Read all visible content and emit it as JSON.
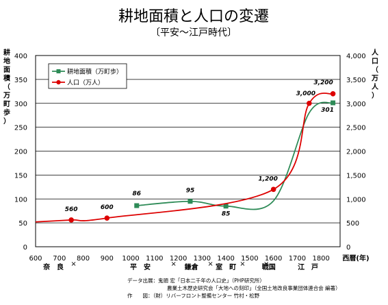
{
  "chart_data": {
    "type": "line",
    "title": "耕地面積と人口の変遷",
    "subtitle": "〔平安〜江戸時代〕",
    "x": [
      600,
      750,
      900,
      1025,
      1250,
      1400,
      1600,
      1750,
      1850
    ],
    "xticks": [
      "600",
      "700",
      "800",
      "900",
      "1000",
      "1100",
      "1200",
      "1300",
      "1400",
      "1500",
      "1600",
      "1700",
      "1800"
    ],
    "xlim": [
      600,
      1880
    ],
    "xlabel": "西暦(年)",
    "eras": [
      "奈　良",
      "平　安",
      "鎌倉",
      "室　町",
      "戦国",
      "江　戸"
    ],
    "y_left": {
      "label": "耕地面積（万町歩）",
      "lim": [
        0,
        400
      ],
      "ticks": [
        "0",
        "50",
        "100",
        "150",
        "200",
        "250",
        "300",
        "350",
        "400"
      ]
    },
    "y_right": {
      "label": "人口（万人）",
      "lim": [
        0,
        4000
      ],
      "ticks": [
        "0",
        "500",
        "1,000",
        "1,500",
        "2,000",
        "2,500",
        "3,000",
        "3,500",
        "4,000"
      ]
    },
    "series": [
      {
        "name": "耕地面積（万町歩）",
        "axis": "left",
        "color": "#2e8b57",
        "points": [
          [
            1025,
            86
          ],
          [
            1250,
            95
          ],
          [
            1400,
            85
          ],
          [
            1600,
            96
          ],
          [
            1750,
            280
          ],
          [
            1850,
            301
          ]
        ],
        "labels": [
          [
            "86",
            1025,
            86
          ],
          [
            "95",
            1250,
            95
          ],
          [
            "85",
            1400,
            85
          ],
          [
            "301",
            1850,
            301
          ]
        ]
      },
      {
        "name": "人口（万人）",
        "axis": "right",
        "color": "#dd0000",
        "points": [
          [
            600,
            520
          ],
          [
            750,
            560
          ],
          [
            900,
            600
          ],
          [
            1600,
            1200
          ],
          [
            1750,
            3000
          ],
          [
            1850,
            3200
          ]
        ],
        "labels": [
          [
            "560",
            750,
            560
          ],
          [
            "600",
            900,
            600
          ],
          [
            "1,200",
            1600,
            1200
          ],
          [
            "3,000",
            1750,
            3000
          ],
          [
            "3,200",
            1850,
            3200
          ]
        ]
      }
    ],
    "legend_position": "top-left",
    "grid": "horizontal"
  },
  "source": {
    "line1": "データ出展：鬼頭 宏「日本二千年の人口史」（PHP研究所）",
    "line2": "農業土木歴史研究会「大地への刻印」（全国土地改良事業団体連合会 編著）",
    "line3": "作　　図：（財）リバーフロント整備センター 竹村・松野"
  }
}
